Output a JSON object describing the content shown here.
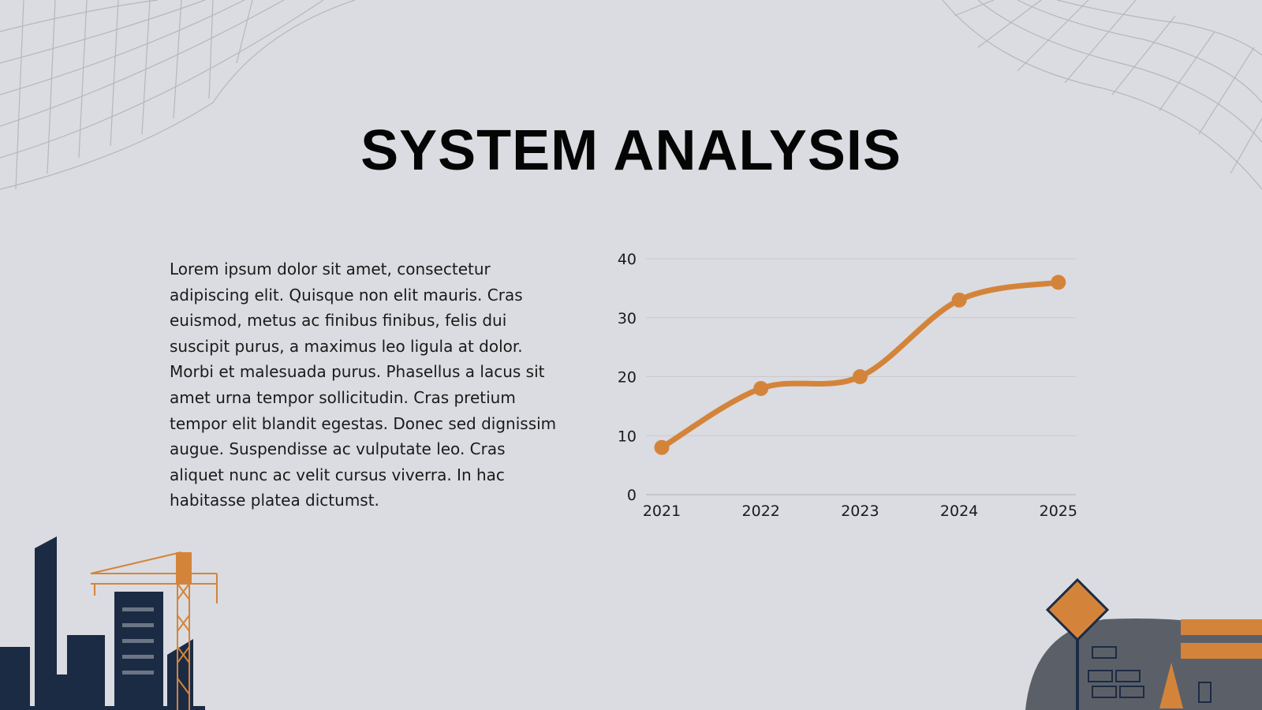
{
  "title": "SYSTEM ANALYSIS",
  "body_lines": [
    "Lorem ipsum dolor sit amet, consectetur",
    "adipiscing elit. Quisque non elit mauris. Cras",
    "euismod, metus ac finibus finibus, felis dui",
    "suscipit purus, a maximus leo ligula at dolor.",
    "Morbi et malesuada purus. Phasellus a lacus sit",
    "amet urna tempor sollicitudin. Cras pretium",
    "tempor elit blandit egestas. Donec sed dignissim",
    "augue. Suspendisse ac vulputate leo. Cras",
    "aliquet nunc ac velit cursus viverra. In hac",
    "habitasse platea dictumst."
  ],
  "chart_data": {
    "type": "line",
    "categories": [
      "2021",
      "2022",
      "2023",
      "2024",
      "2025"
    ],
    "series": [
      {
        "color": "#d4843a",
        "values": [
          8,
          18,
          20,
          33,
          36
        ]
      }
    ],
    "ylim": [
      0,
      40
    ],
    "yticks": [
      0,
      10,
      20,
      30,
      40
    ],
    "grid": true
  }
}
